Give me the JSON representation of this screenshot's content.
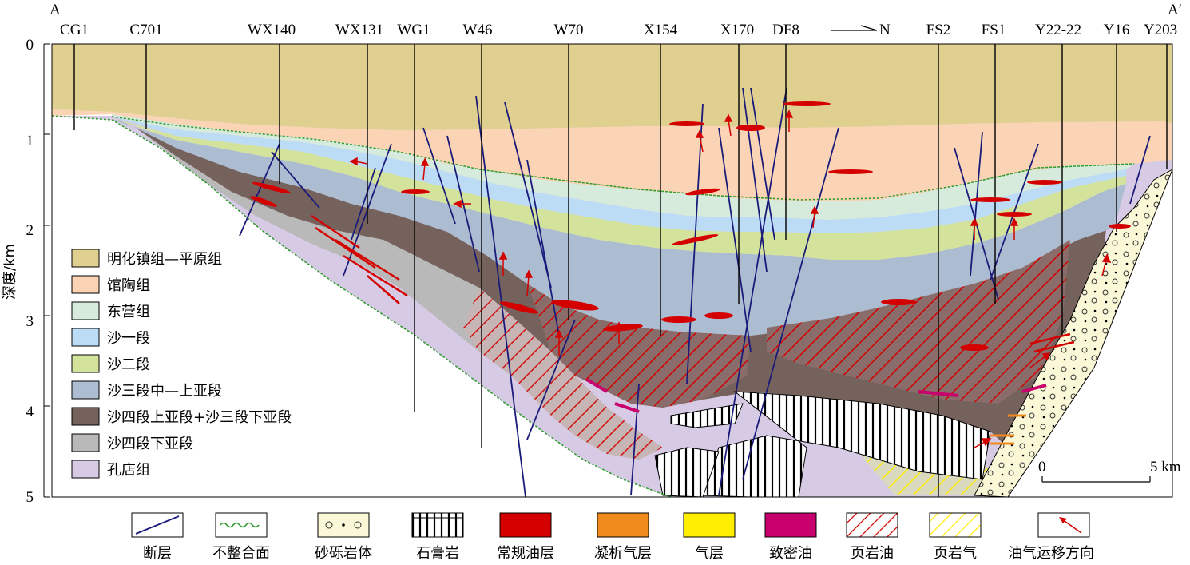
{
  "section": {
    "start_label": "A",
    "end_label": "A′"
  },
  "wells": [
    "CG1",
    "C701",
    "WX140",
    "WX131",
    "WG1",
    "W46",
    "W70",
    "X154",
    "X170",
    "DF8",
    "FS2",
    "FS1",
    "Y22-22",
    "Y16",
    "Y203"
  ],
  "direction_label": "N",
  "axis": {
    "ylabel": "深度/km",
    "ticks": [
      "0",
      "1",
      "2",
      "3",
      "4",
      "5"
    ]
  },
  "scale_bar": {
    "start": "0",
    "end": "5 km"
  },
  "legend_strata": [
    {
      "label": "明化镇组—平原组",
      "color": "#e0d08f"
    },
    {
      "label": "馆陶组",
      "color": "#fad4b4"
    },
    {
      "label": "东营组",
      "color": "#d6ebdc"
    },
    {
      "label": "沙一段",
      "color": "#bcdcf6"
    },
    {
      "label": "沙二段",
      "color": "#d4e39c"
    },
    {
      "label": "沙三段中—上亚段",
      "color": "#adbdd1"
    },
    {
      "label": "沙四段上亚段+沙三段下亚段",
      "color": "#76625c"
    },
    {
      "label": "沙四段下亚段",
      "color": "#b9b9b9"
    },
    {
      "label": "孔店组",
      "color": "#d6cae4"
    }
  ],
  "legend_symbols": [
    {
      "label": "断层",
      "icon": "fault-icon"
    },
    {
      "label": "不整合面",
      "icon": "unconformity-icon"
    },
    {
      "label": "砂砾岩体",
      "icon": "conglomerate-icon"
    },
    {
      "label": "石膏岩",
      "icon": "gypsum-icon"
    },
    {
      "label": "常规油层",
      "icon": "conventional-oil-icon",
      "color": "#d40000"
    },
    {
      "label": "凝析气层",
      "icon": "condensate-gas-icon",
      "color": "#f08a1c"
    },
    {
      "label": "气层",
      "icon": "gas-layer-icon",
      "color": "#ffee00"
    },
    {
      "label": "致密油",
      "icon": "tight-oil-icon",
      "color": "#c8006e"
    },
    {
      "label": "页岩油",
      "icon": "shale-oil-icon",
      "color": "#d40000"
    },
    {
      "label": "页岩气",
      "icon": "shale-gas-icon",
      "color": "#ffee00"
    },
    {
      "label": "油气运移方向",
      "icon": "migration-arrow-icon",
      "color": "#d40000"
    }
  ]
}
